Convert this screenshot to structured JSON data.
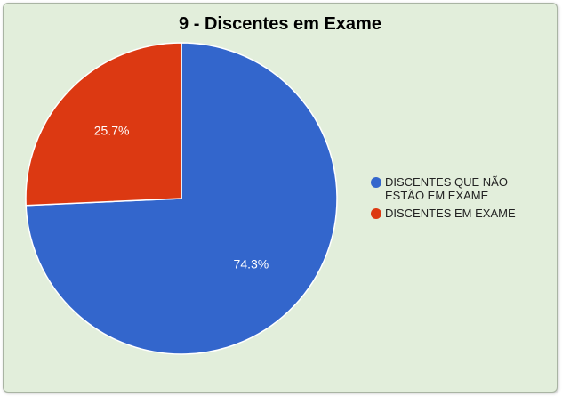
{
  "chart_data": {
    "type": "pie",
    "title": "9 - Discentes em Exame",
    "slices": [
      {
        "label": "DISCENTES QUE NÃO ESTÃO EM EXAME",
        "value": 74.3,
        "display": "74.3%",
        "color": "#3366cc"
      },
      {
        "label": "DISCENTES EM EXAME",
        "value": 25.7,
        "display": "25.7%",
        "color": "#dc3912"
      }
    ],
    "legend_position": "right"
  },
  "colors": {
    "background": "#e2eedb",
    "border": "#a9b4a3"
  }
}
